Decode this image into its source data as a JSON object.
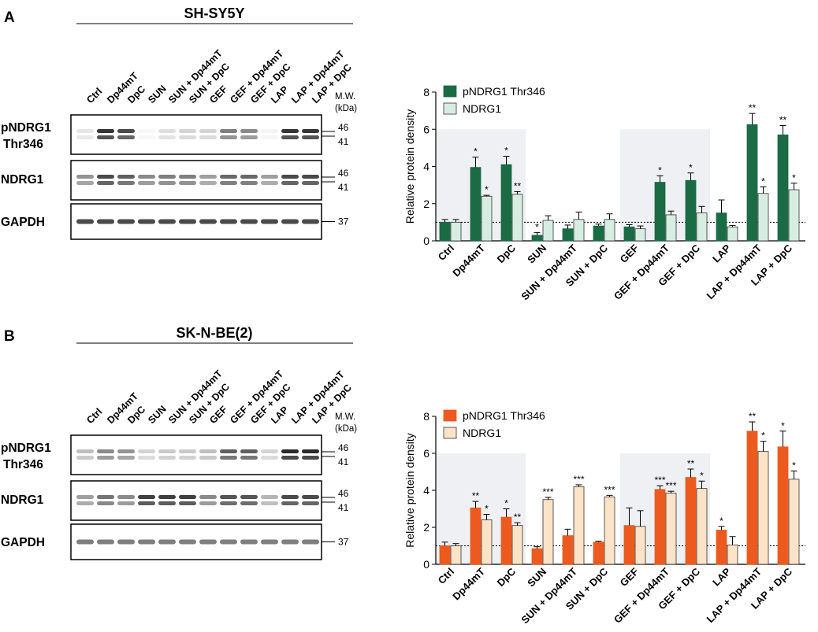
{
  "colors": {
    "panelA_dark": "#1b6b45",
    "panelA_light": "#d8ede2",
    "panelB_dark": "#ec5a1f",
    "panelB_light": "#fbe3c7",
    "shade": "#eef0f3",
    "blot_bg": "#ffffff",
    "band": "#2a2a2a"
  },
  "lanes": [
    "Ctrl",
    "Dp44mT",
    "DpC",
    "SUN",
    "SUN + Dp44mT",
    "SUN + DpC",
    "GEF",
    "GEF + Dp44mT",
    "GEF + DpC",
    "LAP",
    "LAP + Dp44mT",
    "LAP + DpC"
  ],
  "panels": [
    {
      "letter": "A",
      "cell_line": "SH-SY5Y",
      "mw_label": "M.W.",
      "mw_unit": "(kDa)",
      "rows": [
        {
          "label1": "pNDRG1",
          "label2": "Thr346",
          "markers": [
            "46",
            "41"
          ],
          "bands": [
            0.12,
            0.95,
            0.85,
            0.0,
            0.15,
            0.2,
            0.2,
            0.6,
            0.55,
            0.05,
            0.95,
            0.95
          ]
        },
        {
          "label1": "NDRG1",
          "label2": "",
          "markers": [
            "46",
            "41"
          ],
          "bands": [
            0.5,
            0.85,
            0.75,
            0.55,
            0.6,
            0.6,
            0.45,
            0.7,
            0.7,
            0.45,
            0.85,
            0.85
          ]
        },
        {
          "label1": "GAPDH",
          "label2": "",
          "markers": [
            "37"
          ],
          "bands": [
            0.85,
            0.85,
            0.85,
            0.85,
            0.85,
            0.85,
            0.85,
            0.85,
            0.85,
            0.85,
            0.85,
            0.85
          ]
        }
      ]
    },
    {
      "letter": "B",
      "cell_line": "SK-N-BE(2)",
      "mw_label": "M.W.",
      "mw_unit": "(kDa)",
      "rows": [
        {
          "label1": "pNDRG1",
          "label2": "Thr346",
          "markers": [
            "46",
            "41"
          ],
          "bands": [
            0.3,
            0.55,
            0.5,
            0.2,
            0.25,
            0.25,
            0.3,
            0.75,
            0.75,
            0.2,
            1.0,
            1.0
          ]
        },
        {
          "label1": "NDRG1",
          "label2": "",
          "markers": [
            "46",
            "41"
          ],
          "bands": [
            0.45,
            0.65,
            0.55,
            0.9,
            0.9,
            0.9,
            0.55,
            0.8,
            0.8,
            0.35,
            0.85,
            0.85
          ]
        },
        {
          "label1": "GAPDH",
          "label2": "",
          "markers": [
            "37"
          ],
          "bands": [
            0.6,
            0.6,
            0.6,
            0.6,
            0.6,
            0.6,
            0.6,
            0.6,
            0.6,
            0.6,
            0.6,
            0.6
          ]
        }
      ]
    }
  ],
  "chart_data": [
    {
      "type": "bar",
      "panel": "A",
      "ylabel": "Relative protein density",
      "ylim": [
        0,
        8
      ],
      "yticks": [
        "0",
        "2",
        "4",
        "6",
        "8"
      ],
      "baseline": 1,
      "categories": [
        "Ctrl",
        "Dp44mT",
        "DpC",
        "SUN",
        "SUN + Dp44mT",
        "SUN + DpC",
        "GEF",
        "GEF + Dp44mT",
        "GEF + DpC",
        "LAP",
        "LAP + Dp44mT",
        "LAP + DpC"
      ],
      "shaded_groups": [
        [
          0,
          2
        ],
        [
          6,
          8
        ]
      ],
      "legend_position": "top-left",
      "series": [
        {
          "name": "pNDRG1 Thr346",
          "values": [
            1.0,
            3.95,
            4.1,
            0.3,
            0.65,
            0.8,
            0.75,
            3.15,
            3.25,
            1.5,
            6.25,
            5.7
          ],
          "errors": [
            0.15,
            0.55,
            0.45,
            0.15,
            0.2,
            0.1,
            0.12,
            0.35,
            0.4,
            0.7,
            0.6,
            0.5
          ],
          "sig": [
            "",
            "*",
            "*",
            "*",
            "",
            "",
            "",
            "*",
            "*",
            "",
            "**",
            "**"
          ]
        },
        {
          "name": "NDRG1",
          "values": [
            1.0,
            2.4,
            2.5,
            1.1,
            1.15,
            1.15,
            0.65,
            1.4,
            1.5,
            0.75,
            2.55,
            2.75
          ],
          "errors": [
            0.15,
            0.05,
            0.15,
            0.25,
            0.4,
            0.3,
            0.15,
            0.2,
            0.35,
            0.08,
            0.35,
            0.35
          ],
          "sig": [
            "",
            "*",
            "**",
            "",
            "",
            "",
            "",
            "",
            "",
            "",
            "*",
            "*"
          ]
        }
      ]
    },
    {
      "type": "bar",
      "panel": "B",
      "ylabel": "Relative protein density",
      "ylim": [
        0,
        8
      ],
      "yticks": [
        "0",
        "2",
        "4",
        "6",
        "8"
      ],
      "baseline": 1,
      "categories": [
        "Ctrl",
        "Dp44mT",
        "DpC",
        "SUN",
        "SUN + Dp44mT",
        "SUN + DpC",
        "GEF",
        "GEF + Dp44mT",
        "GEF + DpC",
        "LAP",
        "LAP + Dp44mT",
        "LAP + DpC"
      ],
      "shaded_groups": [
        [
          0,
          2
        ],
        [
          6,
          8
        ]
      ],
      "legend_position": "top-left",
      "series": [
        {
          "name": "pNDRG1 Thr346",
          "values": [
            1.0,
            3.05,
            2.55,
            0.85,
            1.55,
            1.2,
            2.1,
            4.05,
            4.7,
            1.85,
            7.2,
            6.35
          ],
          "errors": [
            0.2,
            0.35,
            0.45,
            0.1,
            0.35,
            0.05,
            0.95,
            0.2,
            0.45,
            0.2,
            0.5,
            0.85
          ],
          "sig": [
            "",
            "**",
            "*",
            "",
            "",
            "",
            "",
            "***",
            "**",
            "*",
            "**",
            "*"
          ]
        },
        {
          "name": "NDRG1",
          "values": [
            1.0,
            2.4,
            2.1,
            3.5,
            4.2,
            3.65,
            2.05,
            3.85,
            4.1,
            1.05,
            6.1,
            4.6
          ],
          "errors": [
            0.12,
            0.3,
            0.15,
            0.12,
            0.1,
            0.08,
            0.85,
            0.1,
            0.4,
            0.45,
            0.55,
            0.45
          ],
          "sig": [
            "",
            "*",
            "**",
            "***",
            "***",
            "***",
            "",
            "***",
            "*",
            "",
            "*",
            "*"
          ]
        }
      ]
    }
  ]
}
